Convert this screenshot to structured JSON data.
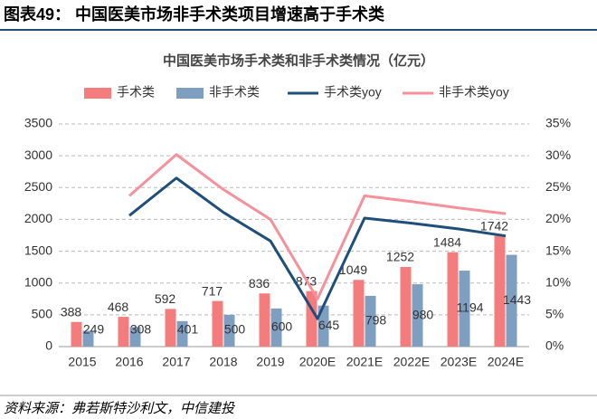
{
  "header": {
    "title": "图表49： 中国医美市场非手术类项目增速高于手术类"
  },
  "source": "资料来源：弗若斯特沙利文，中信建投",
  "chart_data": {
    "type": "bar_line",
    "title": "中国医美市场手术类和非手术类情况（亿元）",
    "categories": [
      "2015",
      "2016",
      "2017",
      "2018",
      "2019",
      "2020E",
      "2021E",
      "2022E",
      "2023E",
      "2024E"
    ],
    "series": [
      {
        "name": "手术类",
        "kind": "bar",
        "color": "#f47c7c",
        "values": [
          388,
          468,
          592,
          717,
          836,
          873,
          1049,
          1252,
          1484,
          1742
        ]
      },
      {
        "name": "非手术类",
        "kind": "bar",
        "color": "#7f9fc0",
        "values": [
          249,
          308,
          401,
          500,
          600,
          645,
          798,
          980,
          1194,
          1443
        ]
      },
      {
        "name": "手术类yoy",
        "kind": "line",
        "axis": "y2",
        "color": "#1f4e79",
        "values": [
          null,
          20.6,
          26.5,
          21.1,
          16.6,
          4.4,
          20.2,
          19.4,
          18.5,
          17.4
        ]
      },
      {
        "name": "非手术类yoy",
        "kind": "line",
        "axis": "y2",
        "color": "#f4919a",
        "values": [
          null,
          23.7,
          30.2,
          24.7,
          20.0,
          7.5,
          23.7,
          22.8,
          21.8,
          20.9
        ]
      }
    ],
    "ylim": [
      0,
      3500
    ],
    "yticks": [
      0,
      500,
      1000,
      1500,
      2000,
      2500,
      3000,
      3500
    ],
    "y2lim": [
      0,
      35
    ],
    "y2ticks": [
      {
        "value": 0,
        "label": "0%"
      },
      {
        "value": 5,
        "label": "5%"
      },
      {
        "value": 10,
        "label": "10%"
      },
      {
        "value": 15,
        "label": "15%"
      },
      {
        "value": 20,
        "label": "20%"
      },
      {
        "value": 25,
        "label": "25%"
      },
      {
        "value": 30,
        "label": "30%"
      },
      {
        "value": 35,
        "label": "35%"
      }
    ],
    "grid": true,
    "legend": "top"
  }
}
